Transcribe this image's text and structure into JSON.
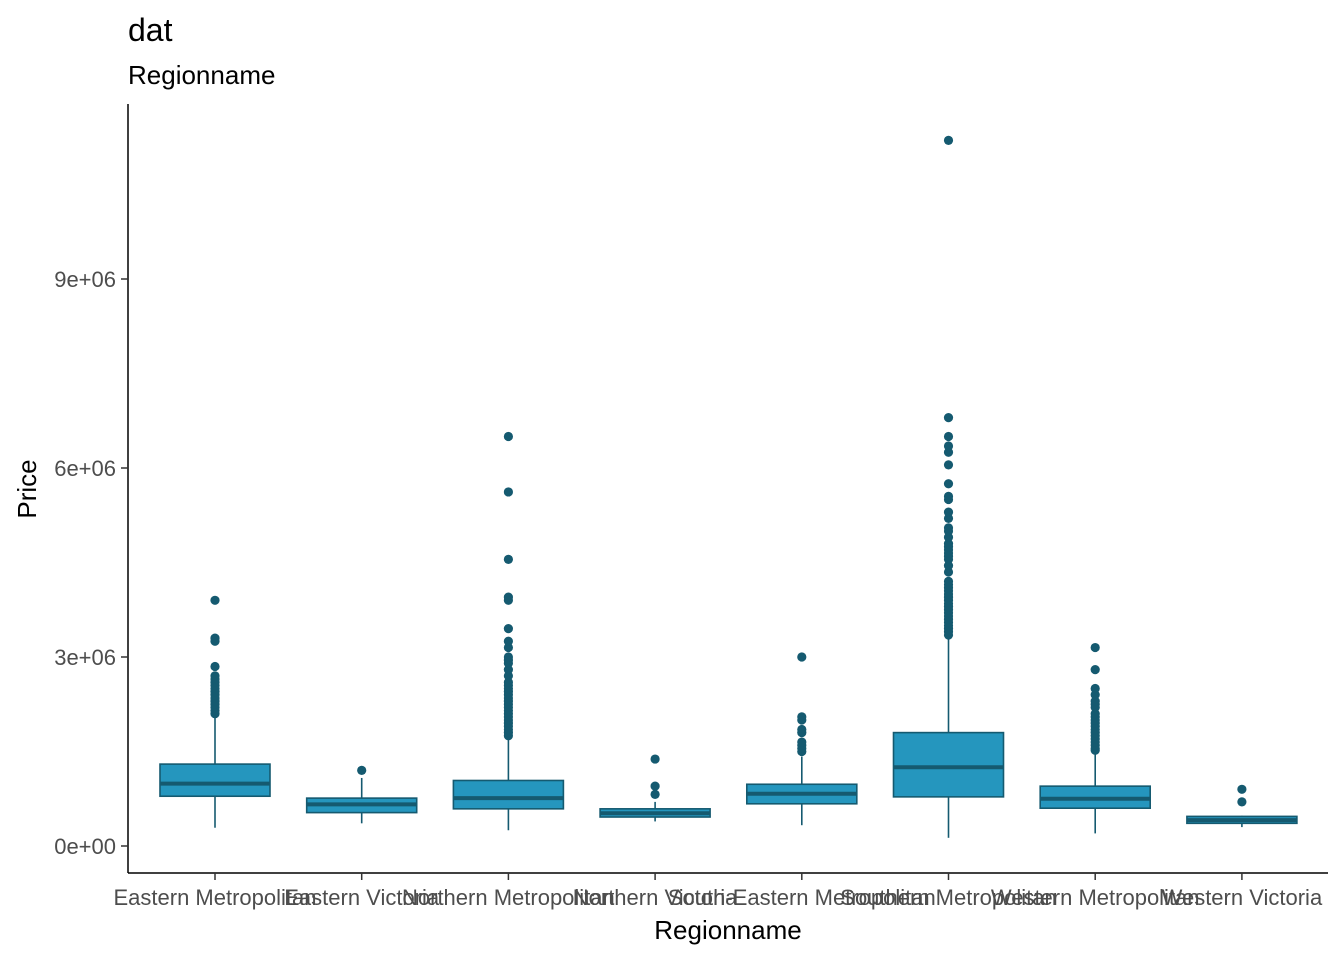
{
  "chart_data": {
    "type": "box",
    "title": "dat",
    "subtitle": "Regionname",
    "xlabel": "Regionname",
    "ylabel": "Price",
    "ylim": [
      -450000,
      11700000
    ],
    "y_ticks": [
      {
        "value": 0,
        "label": "0e+00"
      },
      {
        "value": 3000000,
        "label": "3e+06"
      },
      {
        "value": 6000000,
        "label": "6e+06"
      },
      {
        "value": 9000000,
        "label": "9e+06"
      }
    ],
    "grid": false,
    "legend": "none",
    "colors": {
      "fill": "#2596be",
      "line": "#155a70"
    },
    "categories": [
      "Eastern Metropolitan",
      "Eastern Victoria",
      "Northern Metropolitan",
      "Northern Victoria",
      "South-Eastern Metropolitan",
      "Southern Metropolitan",
      "Western Metropolitan",
      "Western Victoria"
    ],
    "boxes": [
      {
        "category": "Eastern Metropolitan",
        "whisker_low": 290000,
        "q1": 790000,
        "median": 990000,
        "q3": 1300000,
        "whisker_high": 2060000,
        "outliers": [
          2100000,
          2150000,
          2200000,
          2250000,
          2300000,
          2350000,
          2400000,
          2450000,
          2500000,
          2550000,
          2600000,
          2650000,
          2700000,
          2850000,
          3250000,
          3300000,
          3900000
        ]
      },
      {
        "category": "Eastern Victoria",
        "whisker_low": 360000,
        "q1": 530000,
        "median": 660000,
        "q3": 760000,
        "whisker_high": 1080000,
        "outliers": [
          1200000
        ]
      },
      {
        "category": "Northern Metropolitan",
        "whisker_low": 250000,
        "q1": 590000,
        "median": 760000,
        "q3": 1040000,
        "whisker_high": 1700000,
        "outliers": [
          1750000,
          1800000,
          1850000,
          1900000,
          1950000,
          2000000,
          2050000,
          2100000,
          2150000,
          2200000,
          2250000,
          2300000,
          2350000,
          2400000,
          2450000,
          2500000,
          2550000,
          2600000,
          2700000,
          2800000,
          2900000,
          2950000,
          3000000,
          3150000,
          3250000,
          3450000,
          3900000,
          3950000,
          4550000,
          5620000,
          6500000
        ]
      },
      {
        "category": "Northern Victoria",
        "whisker_low": 390000,
        "q1": 460000,
        "median": 520000,
        "q3": 590000,
        "whisker_high": 700000,
        "outliers": [
          820000,
          950000,
          1380000
        ]
      },
      {
        "category": "South-Eastern Metropolitan",
        "whisker_low": 330000,
        "q1": 670000,
        "median": 830000,
        "q3": 980000,
        "whisker_high": 1420000,
        "outliers": [
          1500000,
          1550000,
          1600000,
          1650000,
          1800000,
          1850000,
          2000000,
          2050000,
          3000000
        ]
      },
      {
        "category": "Southern Metropolitan",
        "whisker_low": 130000,
        "q1": 780000,
        "median": 1250000,
        "q3": 1800000,
        "whisker_high": 3300000,
        "outliers": [
          3350000,
          3400000,
          3450000,
          3500000,
          3550000,
          3600000,
          3650000,
          3700000,
          3750000,
          3800000,
          3850000,
          3900000,
          3950000,
          4000000,
          4050000,
          4100000,
          4150000,
          4200000,
          4350000,
          4450000,
          4550000,
          4600000,
          4650000,
          4700000,
          4750000,
          4800000,
          4900000,
          5000000,
          5050000,
          5200000,
          5300000,
          5500000,
          5550000,
          5750000,
          6050000,
          6250000,
          6350000,
          6500000,
          6800000,
          11200000
        ]
      },
      {
        "category": "Western Metropolitan",
        "whisker_low": 200000,
        "q1": 600000,
        "median": 750000,
        "q3": 950000,
        "whisker_high": 1480000,
        "outliers": [
          1520000,
          1550000,
          1600000,
          1650000,
          1700000,
          1750000,
          1800000,
          1850000,
          1900000,
          1950000,
          2000000,
          2050000,
          2100000,
          2200000,
          2250000,
          2300000,
          2400000,
          2500000,
          2800000,
          3150000
        ]
      },
      {
        "category": "Western Victoria",
        "whisker_low": 300000,
        "q1": 360000,
        "median": 410000,
        "q3": 470000,
        "whisker_high": 480000,
        "outliers": [
          700000,
          900000
        ]
      }
    ]
  }
}
